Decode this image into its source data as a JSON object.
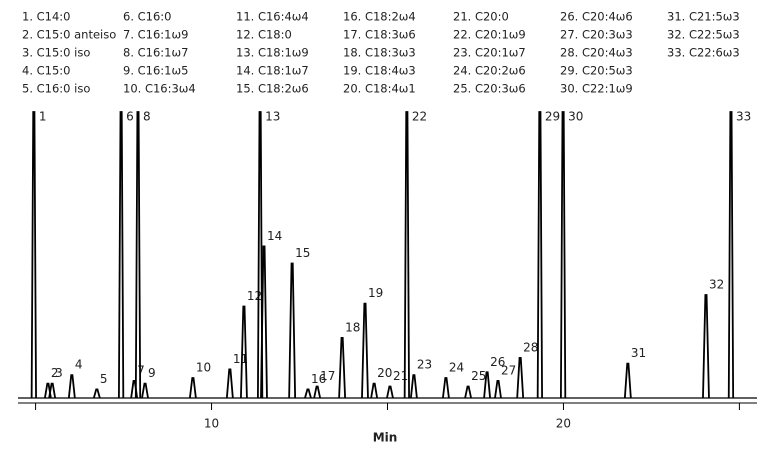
{
  "chart_data": {
    "type": "chromatogram",
    "x_label": "Min",
    "xlim": [
      4.5,
      25.5
    ],
    "xticks": [
      10,
      20
    ],
    "minor_xticks": [
      5,
      15,
      25
    ],
    "ylim": [
      0,
      100
    ],
    "color": "#000000",
    "peaks": [
      {
        "label": "1",
        "legend": "1. C14:0",
        "time": 4.95,
        "height": 100
      },
      {
        "label": "2",
        "legend": "2. C15:0 anteiso",
        "time": 5.35,
        "height": 5
      },
      {
        "label": "3",
        "legend": "3. C15:0 iso",
        "time": 5.47,
        "height": 5
      },
      {
        "label": "4",
        "legend": "4. C15:0",
        "time": 6.03,
        "height": 8
      },
      {
        "label": "5",
        "legend": "5. C16:0 iso",
        "time": 6.74,
        "height": 3
      },
      {
        "label": "6",
        "legend": "6. C16:0",
        "time": 7.43,
        "height": 100
      },
      {
        "label": "7",
        "legend": "7. C16:1ω9",
        "time": 7.8,
        "height": 6
      },
      {
        "label": "8",
        "legend": "8. C16:1ω7",
        "time": 7.91,
        "height": 100
      },
      {
        "label": "9",
        "legend": "9. C16:1ω5",
        "time": 8.11,
        "height": 5
      },
      {
        "label": "10",
        "legend": "10. C16:3ω4",
        "time": 9.47,
        "height": 7
      },
      {
        "label": "11",
        "legend": "11. C16:4ω4",
        "time": 10.52,
        "height": 10
      },
      {
        "label": "12",
        "legend": "12. C18:0",
        "time": 10.92,
        "height": 32
      },
      {
        "label": "13",
        "legend": "13. C18:1ω9",
        "time": 11.38,
        "height": 100
      },
      {
        "label": "14",
        "legend": "14. C18:1ω7",
        "time": 11.49,
        "height": 53
      },
      {
        "label": "15",
        "legend": "15. C18:2ω6",
        "time": 12.29,
        "height": 47
      },
      {
        "label": "16",
        "legend": "16. C18:2ω4",
        "time": 12.74,
        "height": 3
      },
      {
        "label": "17",
        "legend": "17. C18:3ω6",
        "time": 13.0,
        "height": 4
      },
      {
        "label": "18",
        "legend": "18. C18:3ω3",
        "time": 13.71,
        "height": 21
      },
      {
        "label": "19",
        "legend": "19. C18:4ω3",
        "time": 14.36,
        "height": 33
      },
      {
        "label": "20",
        "legend": "20. C18:4ω1",
        "time": 14.62,
        "height": 5
      },
      {
        "label": "21",
        "legend": "21. C20:0",
        "time": 15.07,
        "height": 4
      },
      {
        "label": "22",
        "legend": "22. C20:1ω9",
        "time": 15.55,
        "height": 100
      },
      {
        "label": "23",
        "legend": "23. C20:1ω7",
        "time": 15.75,
        "height": 8
      },
      {
        "label": "24",
        "legend": "24. C20:2ω6",
        "time": 16.66,
        "height": 7
      },
      {
        "label": "25",
        "legend": "25. C20:3ω6",
        "time": 17.29,
        "height": 4
      },
      {
        "label": "26",
        "legend": "26. C20:4ω6",
        "time": 17.83,
        "height": 9
      },
      {
        "label": "27",
        "legend": "27. C20:3ω3",
        "time": 18.14,
        "height": 6
      },
      {
        "label": "28",
        "legend": "28. C20:4ω3",
        "time": 18.77,
        "height": 14
      },
      {
        "label": "29",
        "legend": "29. C20:5ω3",
        "time": 19.33,
        "height": 100
      },
      {
        "label": "30",
        "legend": "30. C22:1ω9",
        "time": 19.99,
        "height": 100
      },
      {
        "label": "31",
        "legend": "31. C21:5ω3",
        "time": 21.83,
        "height": 12
      },
      {
        "label": "32",
        "legend": "32. C22:5ω3",
        "time": 24.05,
        "height": 36
      },
      {
        "label": "33",
        "legend": "33. C22:6ω3",
        "time": 24.76,
        "height": 100
      }
    ]
  }
}
